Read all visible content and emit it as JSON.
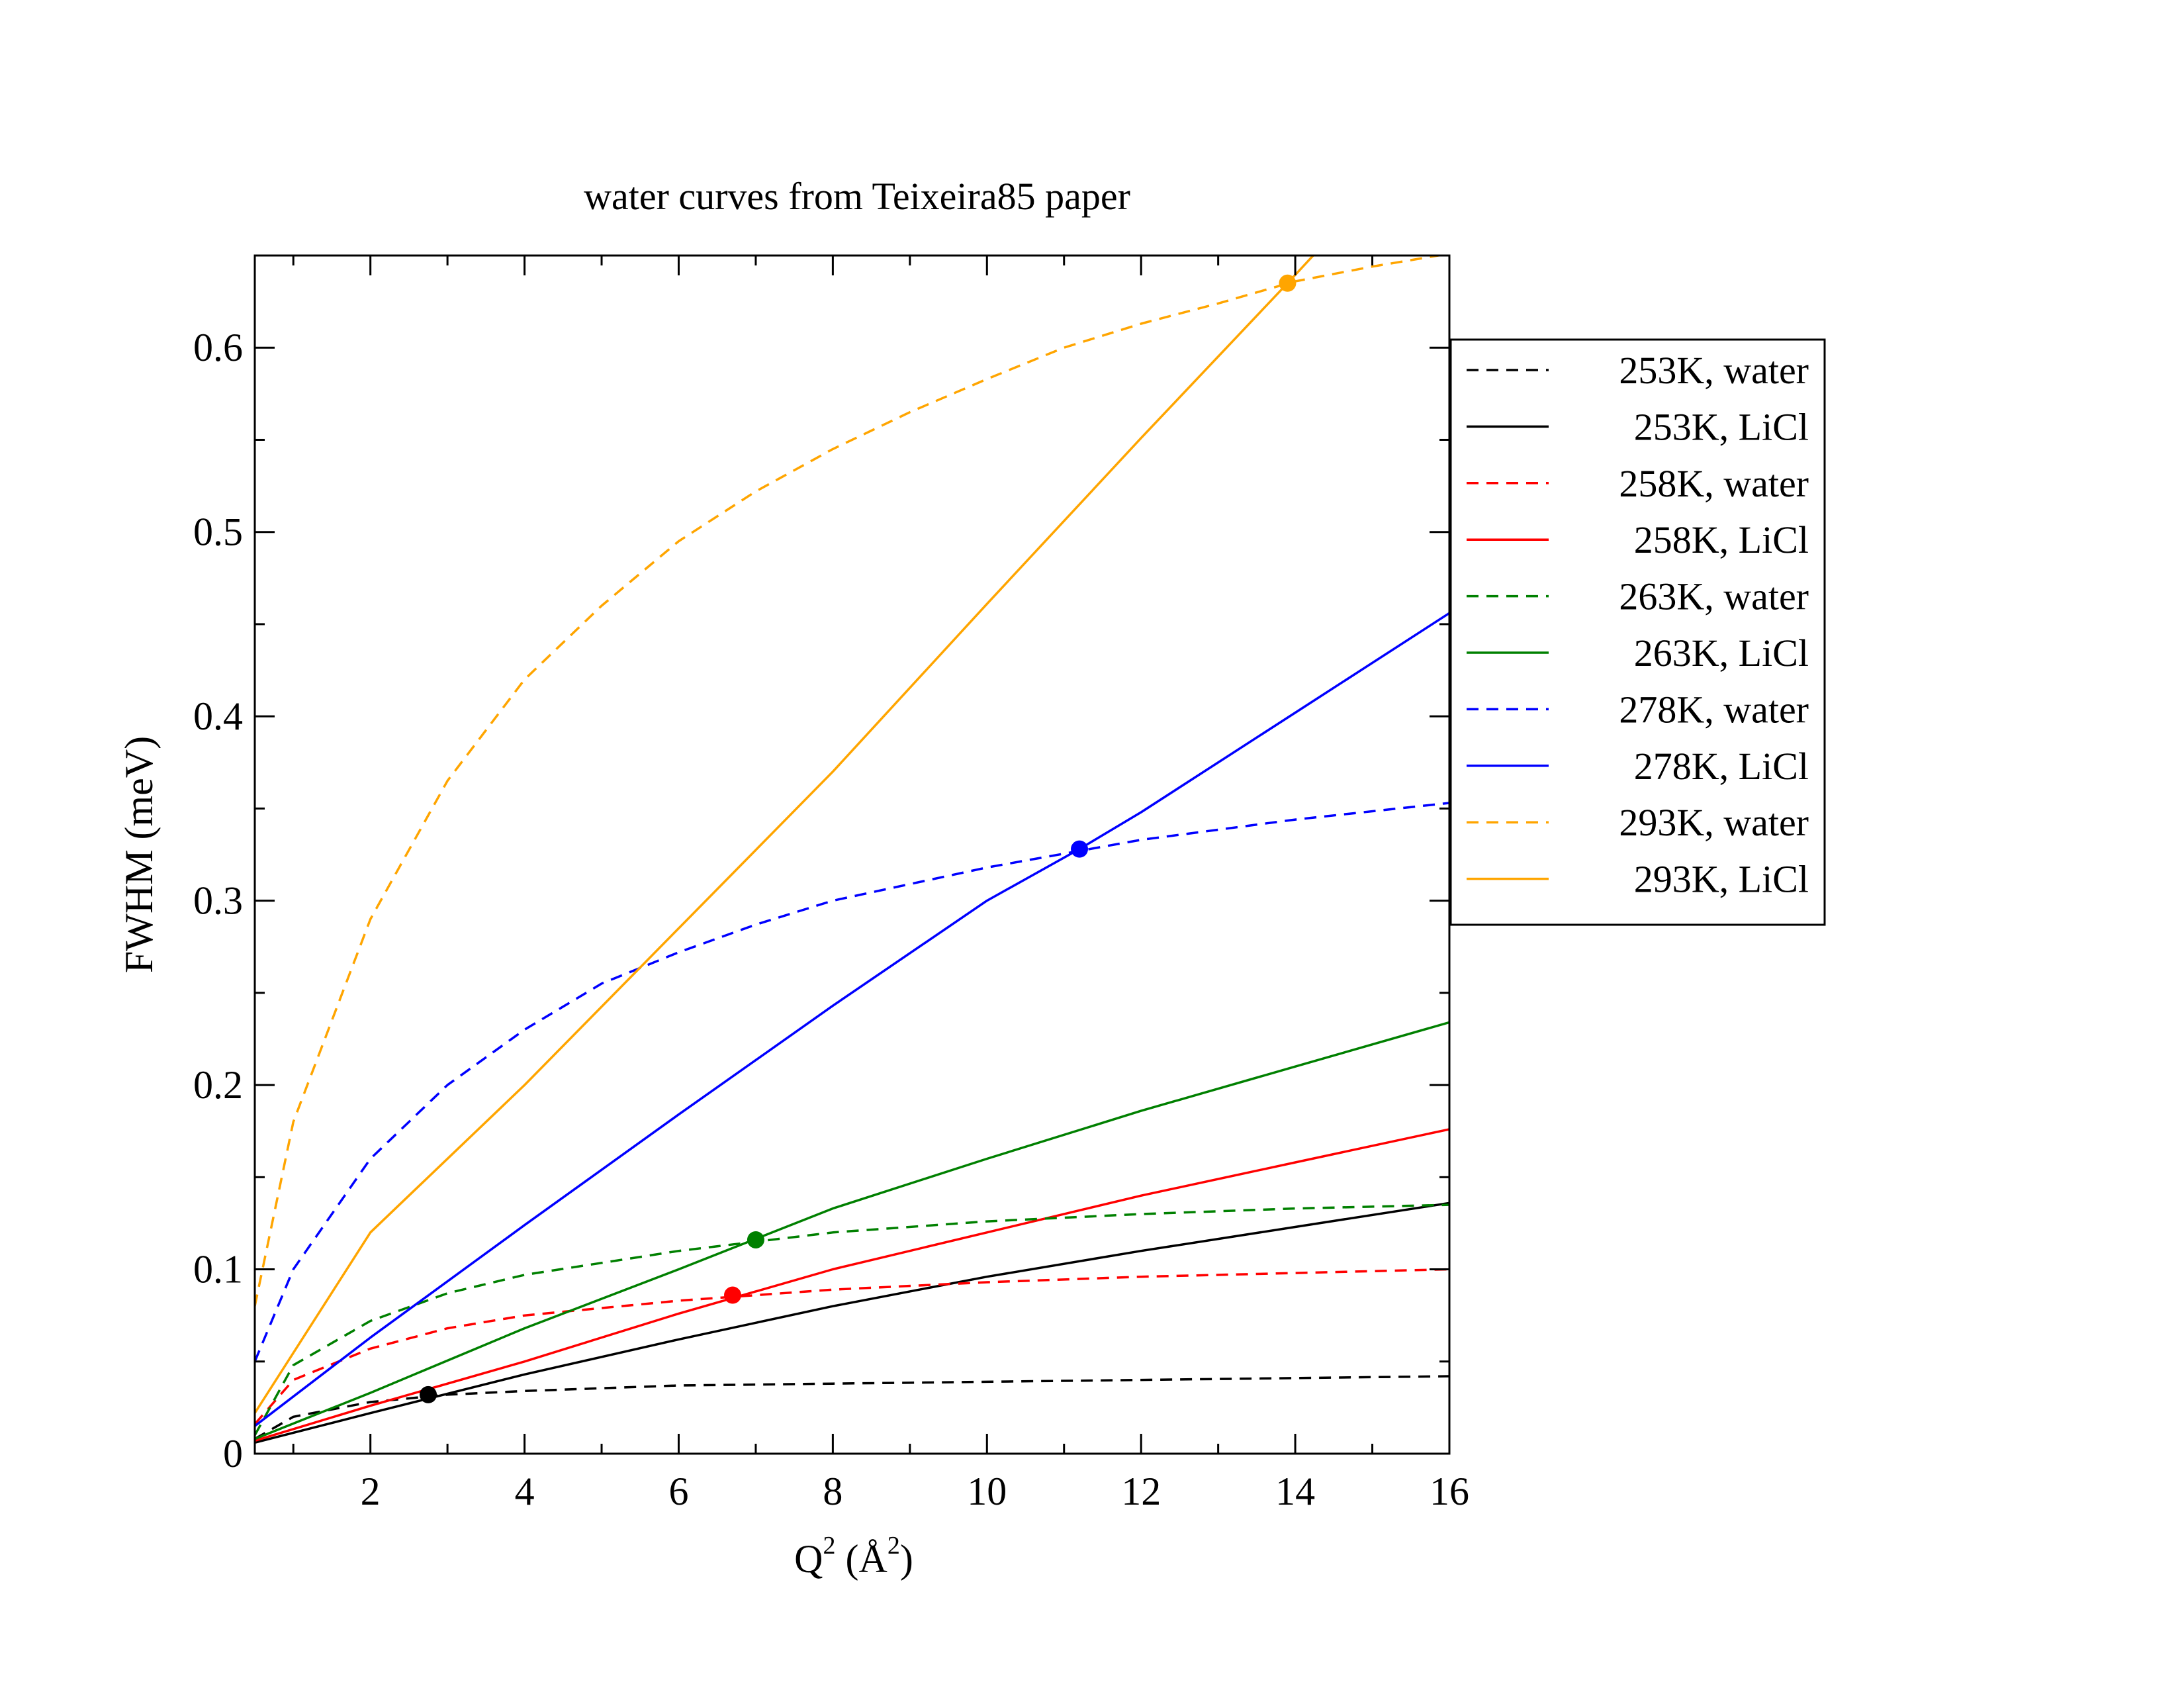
{
  "chart_data": {
    "type": "line",
    "title": "water curves from Teixeira85 paper",
    "xlabel": {
      "base": "Q",
      "sup": "2",
      "unit_open": " (Å",
      "unit_sup": "2",
      "unit_close": ")"
    },
    "ylabel": "FWHM (meV)",
    "xlim": [
      0.5,
      16
    ],
    "ylim": [
      0,
      0.65
    ],
    "x_ticks": [
      2,
      4,
      6,
      8,
      10,
      12,
      14,
      16
    ],
    "x_tick_labels": [
      "2",
      "4",
      "6",
      "8",
      "10",
      "12",
      "14",
      "16"
    ],
    "y_ticks": [
      0,
      0.1,
      0.2,
      0.3,
      0.4,
      0.5,
      0.6
    ],
    "y_tick_labels": [
      "0",
      "0.1",
      "0.2",
      "0.3",
      "0.4",
      "0.5",
      "0.6"
    ],
    "legend_position": "right, outside plot",
    "grid": false,
    "series": [
      {
        "name": "253K, water",
        "color": "#000000",
        "style": "dashed",
        "x": [
          0.5,
          1,
          2,
          3,
          4,
          6,
          8,
          10,
          12,
          14,
          16
        ],
        "y": [
          0.008,
          0.02,
          0.028,
          0.032,
          0.034,
          0.037,
          0.038,
          0.039,
          0.04,
          0.041,
          0.042
        ]
      },
      {
        "name": "253K, LiCl",
        "color": "#000000",
        "style": "solid",
        "x": [
          0.5,
          2,
          4,
          6,
          8,
          10,
          12,
          14,
          16
        ],
        "y": [
          0.006,
          0.022,
          0.043,
          0.062,
          0.08,
          0.096,
          0.11,
          0.123,
          0.136
        ]
      },
      {
        "name": "258K, water",
        "color": "#ff0000",
        "style": "dashed",
        "x": [
          0.5,
          1,
          2,
          3,
          4,
          6,
          8,
          10,
          12,
          14,
          16
        ],
        "y": [
          0.016,
          0.04,
          0.057,
          0.068,
          0.075,
          0.083,
          0.089,
          0.093,
          0.096,
          0.098,
          0.1
        ]
      },
      {
        "name": "258K, LiCl",
        "color": "#ff0000",
        "style": "solid",
        "x": [
          0.5,
          2,
          4,
          6,
          8,
          10,
          12,
          14,
          16
        ],
        "y": [
          0.007,
          0.026,
          0.05,
          0.076,
          0.1,
          0.12,
          0.14,
          0.158,
          0.176
        ]
      },
      {
        "name": "263K, water",
        "color": "#008000",
        "style": "dashed",
        "x": [
          0.5,
          1,
          2,
          3,
          4,
          6,
          8,
          10,
          12,
          14,
          16
        ],
        "y": [
          0.01,
          0.048,
          0.072,
          0.087,
          0.097,
          0.11,
          0.12,
          0.126,
          0.13,
          0.133,
          0.135
        ]
      },
      {
        "name": "263K, LiCl",
        "color": "#008000",
        "style": "solid",
        "x": [
          0.5,
          2,
          4,
          6,
          8,
          10,
          12,
          14,
          16
        ],
        "y": [
          0.008,
          0.033,
          0.068,
          0.1,
          0.133,
          0.16,
          0.186,
          0.21,
          0.234
        ]
      },
      {
        "name": "278K, water",
        "color": "#0000ff",
        "style": "dashed",
        "x": [
          0.5,
          1,
          2,
          3,
          4,
          5,
          6,
          7,
          8,
          10,
          12,
          14,
          16
        ],
        "y": [
          0.05,
          0.1,
          0.16,
          0.2,
          0.23,
          0.255,
          0.272,
          0.287,
          0.3,
          0.318,
          0.333,
          0.344,
          0.353
        ]
      },
      {
        "name": "278K, LiCl",
        "color": "#0000ff",
        "style": "solid",
        "x": [
          0.5,
          2,
          4,
          6,
          8,
          10,
          11.2,
          12,
          14,
          16
        ],
        "y": [
          0.015,
          0.063,
          0.124,
          0.184,
          0.243,
          0.3,
          0.328,
          0.348,
          0.402,
          0.456
        ]
      },
      {
        "name": "293K, water",
        "color": "#ffa500",
        "style": "dashed",
        "x": [
          0.5,
          1,
          2,
          3,
          4,
          5,
          6,
          7,
          8,
          9,
          10,
          11,
          12,
          13,
          14,
          15,
          16
        ],
        "y": [
          0.08,
          0.18,
          0.29,
          0.365,
          0.42,
          0.46,
          0.495,
          0.522,
          0.545,
          0.565,
          0.583,
          0.6,
          0.613,
          0.624,
          0.636,
          0.644,
          0.651
        ]
      },
      {
        "name": "293K, LiCl",
        "color": "#ffa500",
        "style": "solid",
        "x": [
          0.5,
          2,
          4,
          6,
          8,
          10,
          12,
          13.9,
          14.3
        ],
        "y": [
          0.022,
          0.12,
          0.2,
          0.285,
          0.37,
          0.461,
          0.551,
          0.635,
          0.653
        ]
      }
    ],
    "markers": [
      {
        "x": 2.75,
        "y": 0.032,
        "color": "#000000"
      },
      {
        "x": 6.7,
        "y": 0.086,
        "color": "#ff0000"
      },
      {
        "x": 7.0,
        "y": 0.116,
        "color": "#008000"
      },
      {
        "x": 11.2,
        "y": 0.328,
        "color": "#0000ff"
      },
      {
        "x": 13.9,
        "y": 0.635,
        "color": "#ffa500"
      }
    ]
  }
}
